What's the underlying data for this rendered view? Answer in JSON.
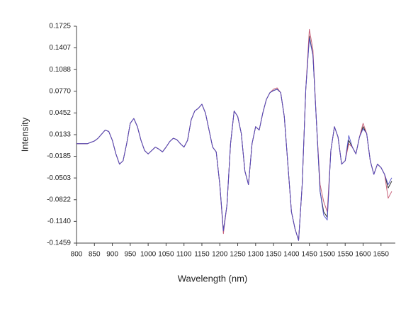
{
  "chart_data": {
    "type": "line",
    "x_label": "Wavelength (nm)",
    "y_label": "Intensity",
    "x": [
      800,
      810,
      820,
      830,
      840,
      850,
      860,
      870,
      880,
      890,
      900,
      910,
      920,
      930,
      940,
      950,
      960,
      970,
      980,
      990,
      1000,
      1010,
      1020,
      1030,
      1040,
      1050,
      1060,
      1070,
      1080,
      1090,
      1100,
      1110,
      1120,
      1130,
      1140,
      1150,
      1160,
      1170,
      1180,
      1190,
      1200,
      1210,
      1220,
      1230,
      1240,
      1250,
      1260,
      1270,
      1280,
      1290,
      1300,
      1310,
      1320,
      1330,
      1340,
      1350,
      1360,
      1370,
      1380,
      1390,
      1400,
      1410,
      1420,
      1430,
      1440,
      1450,
      1460,
      1470,
      1480,
      1490,
      1500,
      1510,
      1520,
      1530,
      1540,
      1550,
      1560,
      1570,
      1580,
      1590,
      1600,
      1610,
      1620,
      1630,
      1640,
      1650,
      1660,
      1670,
      1680
    ],
    "series": [
      {
        "color": "#1a1a1a",
        "values": [
          0,
          0,
          0,
          0,
          0.002,
          0.004,
          0.008,
          0.014,
          0.02,
          0.018,
          0.005,
          -0.015,
          -0.03,
          -0.025,
          0,
          0.03,
          0.037,
          0.025,
          0.005,
          -0.01,
          -0.015,
          -0.01,
          -0.005,
          -0.008,
          -0.012,
          -0.005,
          0.003,
          0.008,
          0.006,
          0,
          -0.005,
          0.005,
          0.035,
          0.048,
          0.052,
          0.058,
          0.045,
          0.02,
          -0.005,
          -0.012,
          -0.06,
          -0.128,
          -0.09,
          0,
          0.048,
          0.04,
          0.015,
          -0.04,
          -0.06,
          0,
          0.025,
          0.02,
          0.045,
          0.065,
          0.075,
          0.078,
          0.08,
          0.075,
          0.04,
          -0.03,
          -0.1,
          -0.125,
          -0.142,
          -0.06,
          0.08,
          0.158,
          0.13,
          0.03,
          -0.07,
          -0.1,
          -0.108,
          -0.01,
          0.025,
          0.01,
          -0.03,
          -0.025,
          0.005,
          -0.005,
          -0.015,
          0.01,
          0.025,
          0.015,
          -0.025,
          -0.045,
          -0.03,
          -0.035,
          -0.045,
          -0.065,
          -0.055
        ]
      },
      {
        "color": "#c2506a",
        "values": [
          0,
          0,
          0,
          0,
          0.002,
          0.004,
          0.008,
          0.014,
          0.02,
          0.018,
          0.005,
          -0.015,
          -0.03,
          -0.025,
          0,
          0.03,
          0.037,
          0.025,
          0.005,
          -0.01,
          -0.015,
          -0.01,
          -0.005,
          -0.008,
          -0.012,
          -0.005,
          0.003,
          0.008,
          0.006,
          0,
          -0.005,
          0.005,
          0.035,
          0.048,
          0.052,
          0.058,
          0.045,
          0.02,
          -0.005,
          -0.012,
          -0.06,
          -0.132,
          -0.09,
          0,
          0.048,
          0.04,
          0.015,
          -0.04,
          -0.06,
          0,
          0.025,
          0.02,
          0.045,
          0.065,
          0.075,
          0.08,
          0.082,
          0.075,
          0.04,
          -0.03,
          -0.1,
          -0.125,
          -0.142,
          -0.06,
          0.08,
          0.168,
          0.138,
          0.03,
          -0.06,
          -0.085,
          -0.1,
          -0.01,
          0.025,
          0.01,
          -0.03,
          -0.025,
          0,
          -0.005,
          -0.015,
          0.01,
          0.03,
          0.015,
          -0.025,
          -0.045,
          -0.03,
          -0.035,
          -0.045,
          -0.08,
          -0.07
        ]
      },
      {
        "color": "#4b4bc8",
        "values": [
          0,
          0,
          0,
          0,
          0.002,
          0.004,
          0.008,
          0.014,
          0.02,
          0.018,
          0.005,
          -0.015,
          -0.03,
          -0.025,
          0,
          0.03,
          0.037,
          0.025,
          0.005,
          -0.01,
          -0.015,
          -0.01,
          -0.005,
          -0.008,
          -0.012,
          -0.005,
          0.003,
          0.008,
          0.006,
          0,
          -0.005,
          0.005,
          0.035,
          0.048,
          0.052,
          0.058,
          0.045,
          0.02,
          -0.005,
          -0.012,
          -0.06,
          -0.128,
          -0.09,
          0,
          0.048,
          0.04,
          0.015,
          -0.04,
          -0.06,
          0,
          0.025,
          0.02,
          0.045,
          0.065,
          0.075,
          0.078,
          0.08,
          0.075,
          0.04,
          -0.03,
          -0.1,
          -0.125,
          -0.142,
          -0.06,
          0.08,
          0.155,
          0.13,
          0.03,
          -0.07,
          -0.105,
          -0.112,
          -0.01,
          0.025,
          0.01,
          -0.03,
          -0.025,
          0.012,
          -0.005,
          -0.015,
          0.01,
          0.022,
          0.015,
          -0.025,
          -0.045,
          -0.03,
          -0.035,
          -0.045,
          -0.06,
          -0.05
        ]
      }
    ],
    "xlim": [
      800,
      1690
    ],
    "xticks": [
      800,
      850,
      900,
      950,
      1000,
      1050,
      1100,
      1150,
      1200,
      1250,
      1300,
      1350,
      1400,
      1450,
      1500,
      1550,
      1600,
      1650
    ],
    "ylim": [
      -0.1459,
      0.1725
    ],
    "yticks": [
      0.1725,
      0.1407,
      0.1088,
      {
        "value": 0.077,
        "label": "0.0770"
      },
      0.0452,
      0.0133,
      -0.0185,
      -0.0503,
      -0.0822,
      {
        "value": -0.114,
        "label": "-0.1140"
      },
      -0.1459
    ],
    "grid": false
  }
}
